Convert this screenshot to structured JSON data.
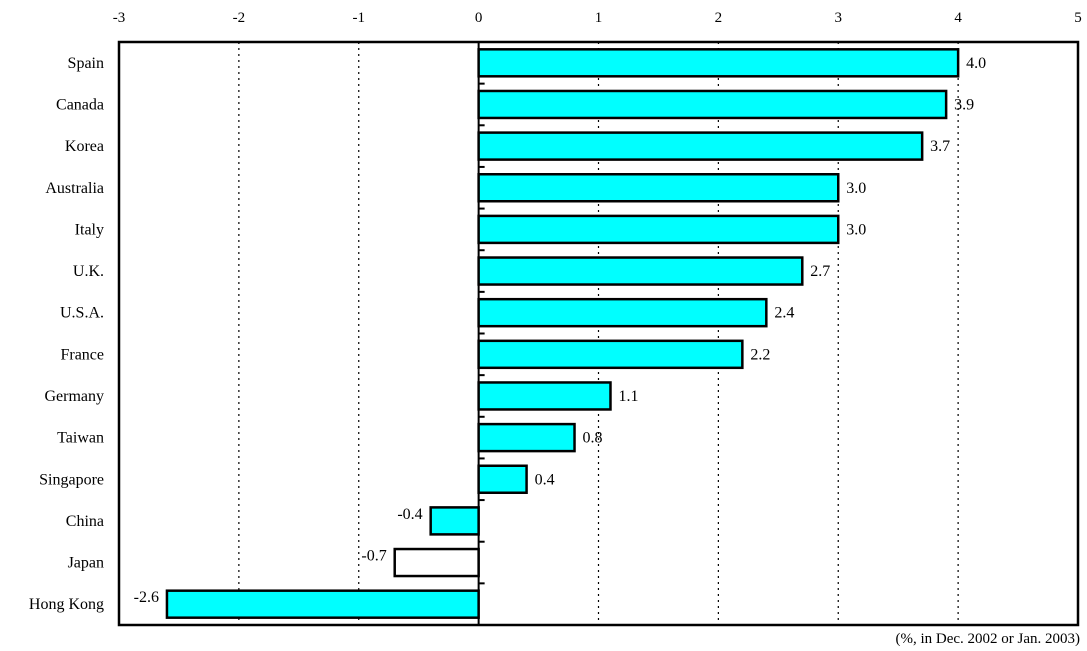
{
  "chart_data": {
    "type": "bar",
    "orientation": "horizontal",
    "categories": [
      "Spain",
      "Canada",
      "Korea",
      "Australia",
      "Italy",
      "U.K.",
      "U.S.A.",
      "France",
      "Germany",
      "Taiwan",
      "Singapore",
      "China",
      "Japan",
      "Hong Kong"
    ],
    "values": [
      4.0,
      3.9,
      3.7,
      3.0,
      3.0,
      2.7,
      2.4,
      2.2,
      1.1,
      0.8,
      0.4,
      -0.4,
      -0.7,
      -2.6
    ],
    "value_labels": [
      "4.0",
      "3.9",
      "3.7",
      "3.0",
      "3.0",
      "2.7",
      "2.4",
      "2.2",
      "1.1",
      "0.8",
      "0.4",
      "-0.4",
      "-0.7",
      "-2.6"
    ],
    "bar_fills": [
      "#00FFFF",
      "#00FFFF",
      "#00FFFF",
      "#00FFFF",
      "#00FFFF",
      "#00FFFF",
      "#00FFFF",
      "#00FFFF",
      "#00FFFF",
      "#00FFFF",
      "#00FFFF",
      "#00FFFF",
      "#FFFFFF",
      "#00FFFF"
    ],
    "xlim": [
      -3,
      5
    ],
    "xticks": [
      -3,
      -2,
      -1,
      0,
      1,
      2,
      3,
      4,
      5
    ],
    "xtick_labels": [
      "-3",
      "-2",
      "-1",
      "0",
      "1",
      "2",
      "3",
      "4",
      "5"
    ],
    "x_axis_position": "top",
    "grid": "vertical dotted",
    "note": "(%, in Dec. 2002 or Jan. 2003)",
    "colors": {
      "bar": "#00FFFF",
      "outline": "#000000",
      "highlight_empty": "#FFFFFF"
    }
  }
}
